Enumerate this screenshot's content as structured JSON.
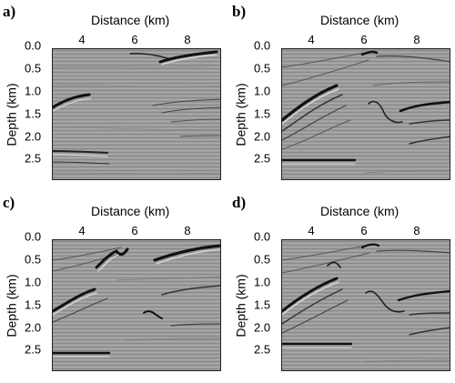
{
  "figure": {
    "x_axis_label": "Distance (km)",
    "y_axis_label": "Depth (km)",
    "x_ticks": [
      "4",
      "6",
      "8"
    ],
    "y_ticks": [
      "0.0",
      "0.5",
      "1.0",
      "1.5",
      "2.0",
      "2.5"
    ],
    "panels": [
      {
        "label": "a)"
      },
      {
        "label": "b)"
      },
      {
        "label": "c)"
      },
      {
        "label": "d)"
      }
    ]
  }
}
